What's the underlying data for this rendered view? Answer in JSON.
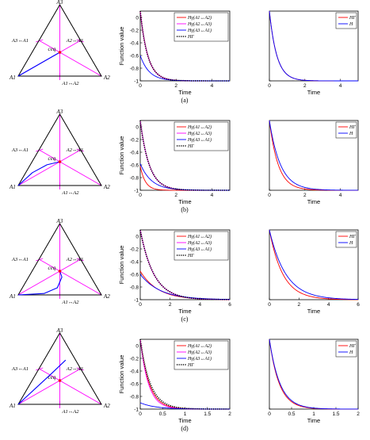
{
  "rows": [
    {
      "caption": "(a)",
      "triangle": {
        "vertex_labels": [
          "A1",
          "A2",
          "A3"
        ],
        "edge_labels": [
          "A3↔A1",
          "A2↔A3",
          "A1↔A2"
        ],
        "point_label": "ceq",
        "curves": [
          {
            "color": "#0000ff",
            "points": [
              [
                0.0,
                0.0
              ],
              [
                0.2,
                0.2
              ],
              [
                0.3333,
                0.3333
              ]
            ]
          }
        ]
      },
      "left_plot": {
        "ylabel": "Function value",
        "xlabel": "Time",
        "xlim": [
          0,
          5
        ],
        "ylim": [
          -1,
          0.1
        ],
        "xticks": [
          0,
          2,
          4
        ],
        "yticks": [
          0,
          -0.2,
          -0.4,
          -0.6,
          -0.8,
          -1
        ],
        "legend": [
          "Hγ(A1↔A2)",
          "Hγ(A2↔A3)",
          "Hγ(A3↔A1)",
          "HΓ"
        ],
        "series": [
          {
            "color": "#ff0000",
            "y0": 0.1,
            "k": 2.4
          },
          {
            "color": "#ff00ff",
            "y0": 0.1,
            "k": 2.4
          },
          {
            "color": "#0000ff",
            "y0": -0.6,
            "k": 2.0
          },
          {
            "color": "#000000",
            "dotted": true,
            "y0": 0.1,
            "k": 2.4
          }
        ]
      },
      "right_plot": {
        "xlabel": "Time",
        "xlim": [
          0,
          5
        ],
        "ylim": [
          -1,
          0.1
        ],
        "xticks": [
          0,
          2,
          4
        ],
        "yticks": [],
        "legend": [
          "HΓ",
          "H"
        ],
        "series": [
          {
            "color": "#ff0000",
            "y0": 0.1,
            "k": 2.4
          },
          {
            "color": "#0000ff",
            "y0": 0.1,
            "k": 2.4
          }
        ]
      }
    },
    {
      "caption": "(b)",
      "triangle": {
        "vertex_labels": [
          "A1",
          "A2",
          "A3"
        ],
        "edge_labels": [
          "A3↔A1",
          "A2↔A3",
          "A1↔A2"
        ],
        "point_label": "ceq",
        "curves": [
          {
            "color": "#0000ff",
            "points": [
              [
                0.0,
                0.0
              ],
              [
                0.08,
                0.18
              ],
              [
                0.2,
                0.29
              ],
              [
                0.3333,
                0.3333
              ]
            ]
          }
        ]
      },
      "left_plot": {
        "ylabel": "Function value",
        "xlabel": "Time",
        "xlim": [
          0,
          5
        ],
        "ylim": [
          -1,
          0.1
        ],
        "xticks": [
          0,
          2,
          4
        ],
        "yticks": [
          0,
          -0.2,
          -0.4,
          -0.6,
          -0.8,
          -1
        ],
        "legend": [
          "Hγ(A1↔A2)",
          "Hγ(A2↔A3)",
          "Hγ(A3↔A1)",
          "HΓ"
        ],
        "series": [
          {
            "color": "#ff0000",
            "y0": -0.62,
            "k": 3.5
          },
          {
            "color": "#ff00ff",
            "y0": 0.1,
            "k": 2.0
          },
          {
            "color": "#0000ff",
            "y0": -0.58,
            "k": 1.6
          },
          {
            "color": "#000000",
            "dotted": true,
            "y0": 0.1,
            "k": 2.0
          }
        ]
      },
      "right_plot": {
        "xlabel": "Time",
        "xlim": [
          0,
          5
        ],
        "ylim": [
          -1,
          0.1
        ],
        "xticks": [
          0,
          2,
          4
        ],
        "yticks": [],
        "legend": [
          "HΓ",
          "H"
        ],
        "series": [
          {
            "color": "#ff0000",
            "y0": 0.1,
            "k": 2.0
          },
          {
            "color": "#0000ff",
            "y0": 0.1,
            "k": 1.6
          }
        ]
      }
    },
    {
      "caption": "(c)",
      "triangle": {
        "vertex_labels": [
          "A1",
          "A2",
          "A3"
        ],
        "edge_labels": [
          "A3↔A1",
          "A2↔A3",
          "A1↔A2"
        ],
        "point_label": "ceq",
        "curves": [
          {
            "color": "#0000ff",
            "points": [
              [
                0.0,
                0.0
              ],
              [
                0.3,
                0.02
              ],
              [
                0.42,
                0.1
              ],
              [
                0.4,
                0.25
              ],
              [
                0.3333,
                0.3333
              ]
            ]
          }
        ]
      },
      "left_plot": {
        "ylabel": "Function value",
        "xlabel": "Time",
        "xlim": [
          0,
          6
        ],
        "ylim": [
          -1,
          0.1
        ],
        "xticks": [
          0,
          2,
          4,
          6
        ],
        "yticks": [
          0,
          -0.2,
          -0.4,
          -0.6,
          -0.8,
          -1
        ],
        "legend": [
          "Hγ(A1↔A2)",
          "Hγ(A2↔A3)",
          "Hγ(A3↔A1)",
          "HΓ"
        ],
        "series": [
          {
            "color": "#ff0000",
            "y0": -0.55,
            "k": 0.85
          },
          {
            "color": "#ff00ff",
            "y0": 0.1,
            "k": 1.1
          },
          {
            "color": "#0000ff",
            "y0": -0.6,
            "k": 0.75
          },
          {
            "color": "#000000",
            "dotted": true,
            "y0": 0.1,
            "k": 1.1
          }
        ]
      },
      "right_plot": {
        "xlabel": "Time",
        "xlim": [
          0,
          6
        ],
        "ylim": [
          -1,
          0.1
        ],
        "xticks": [
          0,
          2,
          4,
          6
        ],
        "yticks": [],
        "legend": [
          "HΓ",
          "H"
        ],
        "series": [
          {
            "color": "#ff0000",
            "y0": 0.1,
            "k": 1.1
          },
          {
            "color": "#0000ff",
            "y0": 0.1,
            "k": 0.9
          }
        ]
      }
    },
    {
      "caption": "(d)",
      "triangle": {
        "vertex_labels": [
          "A1",
          "A2",
          "A3"
        ],
        "edge_labels": [
          "A3↔A1",
          "A2↔A3",
          "A1↔A2"
        ],
        "point_label": "ceq",
        "curves": [
          {
            "color": "#0000ff",
            "points": [
              [
                0.0,
                0.0
              ],
              [
                0.18,
                0.42
              ],
              [
                0.26,
                0.62
              ]
            ]
          }
        ]
      },
      "left_plot": {
        "ylabel": "Function value",
        "xlabel": "Time",
        "xlim": [
          0,
          2
        ],
        "ylim": [
          -1,
          0.1
        ],
        "xticks": [
          0,
          0.5,
          1,
          1.5,
          2
        ],
        "yticks": [
          0,
          -0.2,
          -0.4,
          -0.6,
          -0.8,
          -1
        ],
        "legend": [
          "Hγ(A1↔A2)",
          "Hγ(A2↔A3)",
          "Hγ(A3↔A1)",
          "HΓ"
        ],
        "series": [
          {
            "color": "#ff0000",
            "y0": 0.1,
            "k": 5.0
          },
          {
            "color": "#ff00ff",
            "y0": 0.1,
            "k": 5.5
          },
          {
            "color": "#0000ff",
            "y0": -0.9,
            "k": 3.0
          },
          {
            "color": "#000000",
            "dotted": true,
            "y0": 0.1,
            "k": 4.5
          }
        ]
      },
      "right_plot": {
        "xlabel": "Time",
        "xlim": [
          0,
          2
        ],
        "ylim": [
          -1,
          0.1
        ],
        "xticks": [
          0,
          0.5,
          1,
          1.5,
          2
        ],
        "yticks": [],
        "legend": [
          "HΓ",
          "H"
        ],
        "series": [
          {
            "color": "#ff0000",
            "y0": 0.1,
            "k": 4.5
          },
          {
            "color": "#0000ff",
            "y0": 0.1,
            "k": 4.2
          }
        ]
      }
    }
  ],
  "chart_data": [
    {
      "type": "line",
      "panel": "(a) left",
      "xlabel": "Time",
      "ylabel": "Function value",
      "xlim": [
        0,
        5
      ],
      "ylim": [
        -1,
        0.1
      ],
      "series": [
        {
          "name": "Hγ(A1↔A2)",
          "x": [
            0,
            1,
            2,
            3,
            4,
            5
          ],
          "y": [
            0.1,
            -0.9,
            -0.99,
            -1,
            -1,
            -1
          ]
        },
        {
          "name": "Hγ(A2↔A3)",
          "x": [
            0,
            1,
            2,
            3,
            4,
            5
          ],
          "y": [
            0.1,
            -0.9,
            -0.99,
            -1,
            -1,
            -1
          ]
        },
        {
          "name": "Hγ(A3↔A1)",
          "x": [
            0,
            1,
            2,
            3,
            4,
            5
          ],
          "y": [
            -0.6,
            -0.95,
            -0.99,
            -1,
            -1,
            -1
          ]
        },
        {
          "name": "HΓ",
          "x": [
            0,
            1,
            2,
            3,
            4,
            5
          ],
          "y": [
            0.1,
            -0.9,
            -0.99,
            -1,
            -1,
            -1
          ]
        }
      ]
    },
    {
      "type": "line",
      "panel": "(a) right",
      "xlabel": "Time",
      "xlim": [
        0,
        5
      ],
      "ylim": [
        -1,
        0.1
      ],
      "series": [
        {
          "name": "HΓ",
          "x": [
            0,
            1,
            2,
            3,
            4,
            5
          ],
          "y": [
            0.1,
            -0.9,
            -0.99,
            -1,
            -1,
            -1
          ]
        },
        {
          "name": "H",
          "x": [
            0,
            1,
            2,
            3,
            4,
            5
          ],
          "y": [
            0.1,
            -0.9,
            -0.99,
            -1,
            -1,
            -1
          ]
        }
      ]
    },
    {
      "type": "line",
      "panel": "(b) left",
      "xlabel": "Time",
      "ylabel": "Function value",
      "xlim": [
        0,
        5
      ],
      "ylim": [
        -1,
        0.1
      ],
      "series": [
        {
          "name": "Hγ(A1↔A2)",
          "x": [
            0,
            1,
            2,
            3,
            4,
            5
          ],
          "y": [
            -0.62,
            -0.99,
            -1,
            -1,
            -1,
            -1
          ]
        },
        {
          "name": "Hγ(A2↔A3)",
          "x": [
            0,
            1,
            2,
            3,
            4,
            5
          ],
          "y": [
            0.1,
            -0.85,
            -0.98,
            -1,
            -1,
            -1
          ]
        },
        {
          "name": "Hγ(A3↔A1)",
          "x": [
            0,
            1,
            2,
            3,
            4,
            5
          ],
          "y": [
            -0.58,
            -0.92,
            -0.98,
            -1,
            -1,
            -1
          ]
        },
        {
          "name": "HΓ",
          "x": [
            0,
            1,
            2,
            3,
            4,
            5
          ],
          "y": [
            0.1,
            -0.85,
            -0.98,
            -1,
            -1,
            -1
          ]
        }
      ]
    },
    {
      "type": "line",
      "panel": "(b) right",
      "xlabel": "Time",
      "xlim": [
        0,
        5
      ],
      "ylim": [
        -1,
        0.1
      ],
      "series": [
        {
          "name": "HΓ",
          "x": [
            0,
            1,
            2,
            3,
            4,
            5
          ],
          "y": [
            0.1,
            -0.85,
            -0.98,
            -1,
            -1,
            -1
          ]
        },
        {
          "name": "H",
          "x": [
            0,
            1,
            2,
            3,
            4,
            5
          ],
          "y": [
            0.1,
            -0.78,
            -0.96,
            -0.99,
            -1,
            -1
          ]
        }
      ]
    },
    {
      "type": "line",
      "panel": "(c) left",
      "xlabel": "Time",
      "ylabel": "Function value",
      "xlim": [
        0,
        6
      ],
      "ylim": [
        -1,
        0.1
      ],
      "series": [
        {
          "name": "Hγ(A1↔A2)",
          "x": [
            0,
            1,
            2,
            3,
            4,
            5,
            6
          ],
          "y": [
            -0.55,
            -0.81,
            -0.92,
            -0.97,
            -0.99,
            -1,
            -1
          ]
        },
        {
          "name": "Hγ(A2↔A3)",
          "x": [
            0,
            1,
            2,
            3,
            4,
            5,
            6
          ],
          "y": [
            0.1,
            -0.63,
            -0.88,
            -0.96,
            -0.99,
            -1,
            -1
          ]
        },
        {
          "name": "Hγ(A3↔A1)",
          "x": [
            0,
            1,
            2,
            3,
            4,
            5,
            6
          ],
          "y": [
            -0.6,
            -0.81,
            -0.91,
            -0.96,
            -0.98,
            -0.99,
            -1
          ]
        },
        {
          "name": "HΓ",
          "x": [
            0,
            1,
            2,
            3,
            4,
            5,
            6
          ],
          "y": [
            0.1,
            -0.63,
            -0.88,
            -0.96,
            -0.99,
            -1,
            -1
          ]
        }
      ]
    },
    {
      "type": "line",
      "panel": "(c) right",
      "xlabel": "Time",
      "xlim": [
        0,
        6
      ],
      "ylim": [
        -1,
        0.1
      ],
      "series": [
        {
          "name": "HΓ",
          "x": [
            0,
            1,
            2,
            3,
            4,
            5,
            6
          ],
          "y": [
            0.1,
            -0.63,
            -0.88,
            -0.96,
            -0.99,
            -1,
            -1
          ]
        },
        {
          "name": "H",
          "x": [
            0,
            1,
            2,
            3,
            4,
            5,
            6
          ],
          "y": [
            0.1,
            -0.55,
            -0.82,
            -0.93,
            -0.97,
            -0.99,
            -1
          ]
        }
      ]
    },
    {
      "type": "line",
      "panel": "(d) left",
      "xlabel": "Time",
      "ylabel": "Function value",
      "xlim": [
        0,
        2
      ],
      "ylim": [
        -1,
        0.1
      ],
      "series": [
        {
          "name": "Hγ(A1↔A2)",
          "x": [
            0,
            0.5,
            1,
            1.5,
            2
          ],
          "y": [
            0.1,
            -0.91,
            -0.99,
            -1,
            -1
          ]
        },
        {
          "name": "Hγ(A2↔A3)",
          "x": [
            0,
            0.5,
            1,
            1.5,
            2
          ],
          "y": [
            0.1,
            -0.93,
            -1,
            -1,
            -1
          ]
        },
        {
          "name": "Hγ(A3↔A1)",
          "x": [
            0,
            0.5,
            1,
            1.5,
            2
          ],
          "y": [
            -0.9,
            -0.98,
            -1,
            -1,
            -1
          ]
        },
        {
          "name": "HΓ",
          "x": [
            0,
            0.5,
            1,
            1.5,
            2
          ],
          "y": [
            0.1,
            -0.88,
            -0.99,
            -1,
            -1
          ]
        }
      ]
    },
    {
      "type": "line",
      "panel": "(d) right",
      "xlabel": "Time",
      "xlim": [
        0,
        2
      ],
      "ylim": [
        -1,
        0.1
      ],
      "series": [
        {
          "name": "HΓ",
          "x": [
            0,
            0.5,
            1,
            1.5,
            2
          ],
          "y": [
            0.1,
            -0.88,
            -0.99,
            -1,
            -1
          ]
        },
        {
          "name": "H",
          "x": [
            0,
            0.5,
            1,
            1.5,
            2
          ],
          "y": [
            0.1,
            -0.86,
            -0.98,
            -1,
            -1
          ]
        }
      ]
    }
  ]
}
